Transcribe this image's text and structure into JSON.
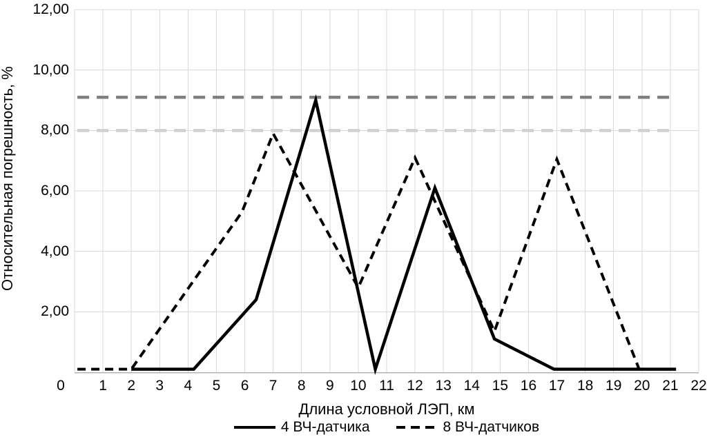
{
  "chart_data": {
    "type": "line",
    "title": "",
    "xlabel": "Длина условной ЛЭП, км",
    "ylabel": "Относительная погрешность, %",
    "xlim": [
      0,
      22
    ],
    "ylim": [
      0,
      12
    ],
    "grid": true,
    "legend_position": "bottom",
    "background_color": "#ffffff",
    "grid_color": "#d9d9d9",
    "axis_line_color": "#b3b3b3",
    "x_tick_values": [
      0,
      1,
      2,
      3,
      4,
      5,
      6,
      7,
      8,
      9,
      10,
      11,
      12,
      13,
      14,
      15,
      16,
      17,
      18,
      19,
      20,
      21,
      22
    ],
    "x_tick_labels": [
      "0",
      "1",
      "2",
      "3",
      "4",
      "5",
      "6",
      "7",
      "8",
      "9",
      "10",
      "11",
      "12",
      "13",
      "14",
      "15",
      "16",
      "17",
      "18",
      "19",
      "20",
      "21",
      "22"
    ],
    "y_tick_values": [
      12,
      10,
      8,
      6,
      4,
      2
    ],
    "y_tick_labels": [
      "12,00",
      "10,00",
      "8,00",
      "6,00",
      "4,00",
      "2,00"
    ],
    "series": [
      {
        "name": "4 ВЧ-датчика",
        "style": "solid",
        "color": "#000000",
        "points": [
          [
            2.0,
            0.1
          ],
          [
            4.2,
            0.1
          ],
          [
            6.4,
            2.4
          ],
          [
            8.5,
            9.0
          ],
          [
            10.6,
            0.1
          ],
          [
            12.7,
            6.1
          ],
          [
            14.8,
            1.1
          ],
          [
            16.9,
            0.1
          ],
          [
            21.2,
            0.1
          ]
        ]
      },
      {
        "name": "8 ВЧ-датчиков",
        "style": "dashed",
        "color": "#000000",
        "points": [
          [
            0.1,
            0.1
          ],
          [
            2.0,
            0.1
          ],
          [
            5.9,
            5.3
          ],
          [
            7.0,
            7.9
          ],
          [
            10.0,
            2.8
          ],
          [
            12.0,
            7.1
          ],
          [
            14.8,
            1.35
          ],
          [
            17.0,
            7.05
          ],
          [
            19.9,
            0.1
          ],
          [
            21.2,
            0.1
          ]
        ]
      }
    ],
    "reference_lines": [
      {
        "y": 9.1,
        "x1": 0.1,
        "x2": 21.0,
        "color": "#7f7f7f",
        "style": "dashed"
      },
      {
        "y": 8.0,
        "x1": 0.1,
        "x2": 21.0,
        "color": "#d0d0d0",
        "style": "dashed"
      }
    ]
  }
}
